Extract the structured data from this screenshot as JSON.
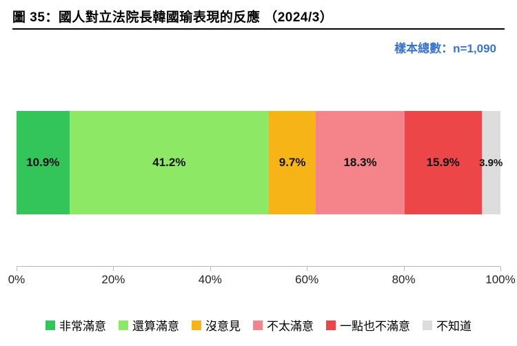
{
  "title": "圖 35：國人對立法院長韓國瑜表現的反應 （2024/3）",
  "sample_size_label": "樣本總數：n=1,090",
  "chart": {
    "type": "stacked-bar-horizontal",
    "background_color": "#ffffff",
    "axis_color": "#b8b8b8",
    "tick_font_size": 17,
    "value_font_size": 17,
    "xlim": [
      0,
      100
    ],
    "xticks": [
      0,
      20,
      40,
      60,
      80,
      100
    ],
    "xtick_labels": [
      "0%",
      "20%",
      "40%",
      "60%",
      "80%",
      "100%"
    ],
    "segments": [
      {
        "label": "非常滿意",
        "value": 10.9,
        "value_label": "10.9%",
        "color": "#34c55a"
      },
      {
        "label": "還算滿意",
        "value": 41.2,
        "value_label": "41.2%",
        "color": "#8de866"
      },
      {
        "label": "沒意見",
        "value": 9.7,
        "value_label": "9.7%",
        "color": "#f7b417"
      },
      {
        "label": "不太滿意",
        "value": 18.3,
        "value_label": "18.3%",
        "color": "#f5848a"
      },
      {
        "label": "一點也不滿意",
        "value": 15.9,
        "value_label": "15.9%",
        "color": "#ed4648"
      },
      {
        "label": "不知道",
        "value": 3.9,
        "value_label": "3.9%",
        "color": "#dddddd"
      }
    ],
    "legend_swatch_size": 14
  }
}
